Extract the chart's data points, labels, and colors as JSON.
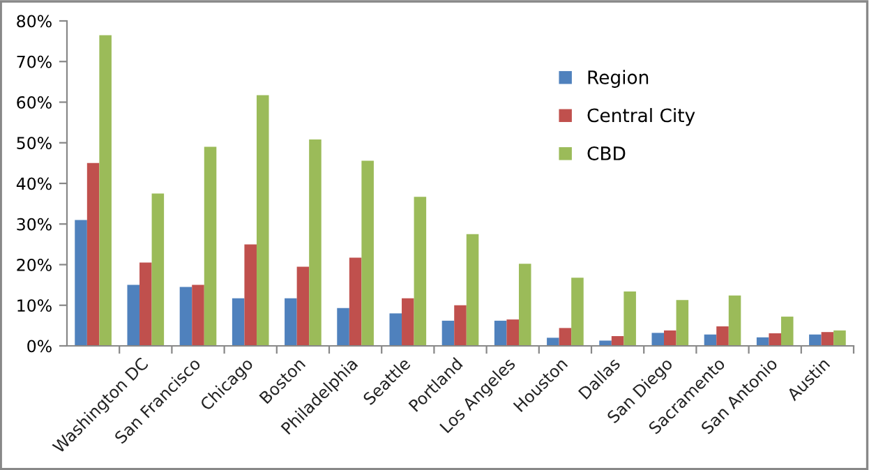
{
  "chart_data": {
    "type": "bar",
    "categories": [
      null,
      "Washington DC",
      "San Francisco",
      "Chicago",
      "Boston",
      "Philadelphia",
      "Seattle",
      "Portland",
      "Los Angeles",
      "Houston",
      "Dallas",
      "San Diego",
      "Sacramento",
      "San Antonio",
      "Austin"
    ],
    "series": [
      {
        "name": "Region",
        "color": "#4f81bd",
        "values": [
          31,
          15,
          14.5,
          11.7,
          11.7,
          9.3,
          8,
          6.2,
          6.2,
          2,
          1.3,
          3.2,
          2.8,
          2.1,
          2.8
        ]
      },
      {
        "name": "Central City",
        "color": "#c0504d",
        "values": [
          45,
          20.5,
          15,
          25,
          19.5,
          21.7,
          11.7,
          10,
          6.5,
          4.4,
          2.4,
          3.8,
          4.8,
          3.1,
          3.4
        ]
      },
      {
        "name": "CBD",
        "color": "#9bbb59",
        "values": [
          76.5,
          37.5,
          49,
          61.7,
          50.8,
          45.6,
          36.7,
          27.5,
          20.2,
          16.8,
          13.4,
          11.3,
          12.4,
          7.2,
          3.8
        ]
      }
    ],
    "ylim": [
      0,
      80
    ],
    "yticks": [
      {
        "value": 0,
        "label": "0%"
      },
      {
        "value": 10,
        "label": "10%"
      },
      {
        "value": 20,
        "label": "20%"
      },
      {
        "value": 30,
        "label": "30%"
      },
      {
        "value": 40,
        "label": "40%"
      },
      {
        "value": 50,
        "label": "50%"
      },
      {
        "value": 60,
        "label": "60%"
      },
      {
        "value": 70,
        "label": "70%"
      },
      {
        "value": 80,
        "label": "80%"
      }
    ],
    "grid": false,
    "legend": "top right"
  }
}
